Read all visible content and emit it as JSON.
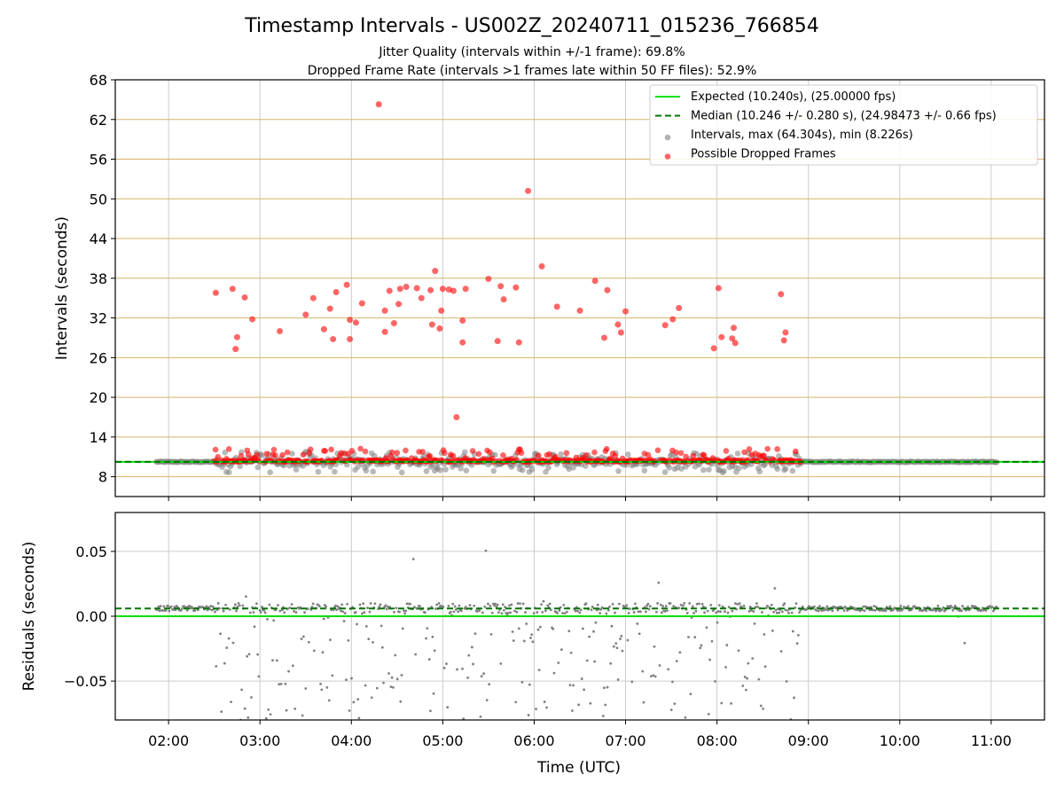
{
  "title": "Timestamp Intervals - US002Z_20240711_015236_766854",
  "subtitle_1": "Jitter Quality (intervals within +/-1 frame): 69.8%",
  "subtitle_2": "Dropped Frame Rate (intervals >1 frames late within 50 FF files): 52.9%",
  "colors": {
    "expected": "#00e000",
    "median": "#007700",
    "intervals": "#808080",
    "dropped": "#ff0000",
    "hgrid": "#d4b56a",
    "vgrid": "#cccccc"
  },
  "chart_data": [
    {
      "type": "scatter",
      "ylabel": "Intervals (seconds)",
      "xlim": [
        "01:25",
        "11:35"
      ],
      "ylim": [
        5,
        68
      ],
      "yticks": [
        "8",
        "14",
        "20",
        "26",
        "32",
        "38",
        "44",
        "50",
        "56",
        "62",
        "68"
      ],
      "yticks_values": [
        8,
        14,
        20,
        26,
        32,
        38,
        44,
        50,
        56,
        62,
        68
      ],
      "grid": "horizontal (gold) and vertical (gray)",
      "legend": {
        "placement": "top-right",
        "entries": [
          "Expected (10.240s), (25.00000 fps)",
          "Median (10.246 +/- 0.280 s), (24.98473 +/- 0.66 fps)",
          "Intervals, max (64.304s), min (8.226s)",
          "Possible Dropped Frames"
        ]
      },
      "expected": 10.24,
      "median": 10.246,
      "interval_span": [
        "01:52",
        "11:04"
      ],
      "dropped_outliers": [
        [
          "02:31",
          35.8
        ],
        [
          "02:42",
          36.4
        ],
        [
          "02:44",
          27.3
        ],
        [
          "02:45",
          29.1
        ],
        [
          "02:50",
          35.1
        ],
        [
          "02:55",
          31.8
        ],
        [
          "03:13",
          30.0
        ],
        [
          "03:30",
          32.5
        ],
        [
          "03:35",
          35.0
        ],
        [
          "03:42",
          30.3
        ],
        [
          "03:46",
          33.4
        ],
        [
          "03:48",
          28.8
        ],
        [
          "03:50",
          35.9
        ],
        [
          "03:57",
          37.0
        ],
        [
          "03:59",
          28.8
        ],
        [
          "03:59",
          31.7
        ],
        [
          "04:03",
          31.3
        ],
        [
          "04:07",
          34.2
        ],
        [
          "04:18",
          64.3
        ],
        [
          "04:22",
          29.9
        ],
        [
          "04:22",
          33.1
        ],
        [
          "04:25",
          36.1
        ],
        [
          "04:28",
          31.2
        ],
        [
          "04:31",
          34.1
        ],
        [
          "04:32",
          36.4
        ],
        [
          "04:36",
          36.7
        ],
        [
          "04:43",
          36.5
        ],
        [
          "04:46",
          35.0
        ],
        [
          "04:52",
          36.2
        ],
        [
          "04:53",
          31.0
        ],
        [
          "04:55",
          39.1
        ],
        [
          "04:58",
          30.4
        ],
        [
          "04:59",
          33.1
        ],
        [
          "05:00",
          36.4
        ],
        [
          "05:04",
          36.3
        ],
        [
          "05:07",
          36.1
        ],
        [
          "05:09",
          17.0
        ],
        [
          "05:13",
          28.3
        ],
        [
          "05:13",
          31.6
        ],
        [
          "05:15",
          36.4
        ],
        [
          "05:30",
          37.9
        ],
        [
          "05:36",
          28.5
        ],
        [
          "05:38",
          36.8
        ],
        [
          "05:40",
          34.8
        ],
        [
          "05:48",
          36.6
        ],
        [
          "05:50",
          28.3
        ],
        [
          "05:56",
          51.2
        ],
        [
          "06:05",
          39.8
        ],
        [
          "06:15",
          33.7
        ],
        [
          "06:30",
          33.1
        ],
        [
          "06:40",
          37.6
        ],
        [
          "06:46",
          29.0
        ],
        [
          "06:48",
          36.2
        ],
        [
          "06:55",
          31.0
        ],
        [
          "06:57",
          29.8
        ],
        [
          "07:00",
          33.0
        ],
        [
          "07:26",
          30.9
        ],
        [
          "07:31",
          31.8
        ],
        [
          "07:35",
          33.5
        ],
        [
          "07:58",
          27.4
        ],
        [
          "08:01",
          36.5
        ],
        [
          "08:03",
          29.1
        ],
        [
          "08:10",
          28.9
        ],
        [
          "08:11",
          30.5
        ],
        [
          "08:12",
          28.2
        ],
        [
          "08:42",
          35.6
        ],
        [
          "08:44",
          28.6
        ],
        [
          "08:45",
          29.8
        ]
      ]
    },
    {
      "type": "scatter",
      "xlabel": "Time (UTC)",
      "ylabel": "Residuals (seconds)",
      "ylim": [
        -0.08,
        0.08
      ],
      "yticks": [
        "−0.05",
        "0.00",
        "0.05"
      ],
      "yticks_values": [
        -0.05,
        0.0,
        0.05
      ],
      "xticks": [
        "02:00",
        "03:00",
        "04:00",
        "05:00",
        "06:00",
        "07:00",
        "08:00",
        "09:00",
        "10:00",
        "11:00"
      ],
      "expected": 0.0,
      "median": 0.006,
      "grid": "on"
    }
  ]
}
